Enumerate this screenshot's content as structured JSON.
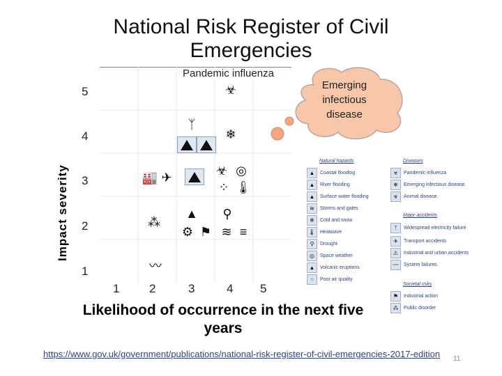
{
  "title": {
    "line1": "National Risk Register of Civil",
    "line2": "Emergencies"
  },
  "y_axis": {
    "label": "Impact severity",
    "ticks": [
      "5",
      "4",
      "3",
      "2",
      "1"
    ]
  },
  "x_axis": {
    "label_line1": "Likelihood of occurrence in the next five",
    "label_line2": "years",
    "ticks": [
      "1",
      "2",
      "3",
      "4",
      "5"
    ]
  },
  "callouts": {
    "pandemic": "Pandemic influenza",
    "emerging_line1": "Emerging",
    "emerging_line2": "infectious",
    "emerging_line3": "disease"
  },
  "colors": {
    "cloud_fill": "#f8c6a8",
    "cloud_stroke": "#b7a6a0",
    "bubble_fill": "#f4a77f",
    "link": "#2f3f8f",
    "legend_text": "#2b3f85"
  },
  "legend": {
    "natural_heading": "Natural hazards",
    "natural": [
      "Coastal flooding",
      "River flooding",
      "Surface water flooding",
      "Storms and gales",
      "Cold and snow",
      "Heatwave",
      "Drought",
      "Space weather",
      "Volcanic eruptions",
      "Poor air quality"
    ],
    "diseases_heading": "Diseases",
    "diseases": [
      "Pandemic influenza",
      "Emerging infectious disease",
      "Animal disease"
    ],
    "major_heading": "Major accidents",
    "major": [
      "Widespread electricity failure",
      "Transport accidents",
      "Industrial and urban accidents",
      "System failures"
    ],
    "societal_heading": "Societal risks",
    "societal": [
      "Industrial action",
      "Public disorder"
    ]
  },
  "source_link": "https://www.gov.uk/government/publications/national-risk-register-of-civil-emergencies-2017-edition",
  "page_number": "11"
}
